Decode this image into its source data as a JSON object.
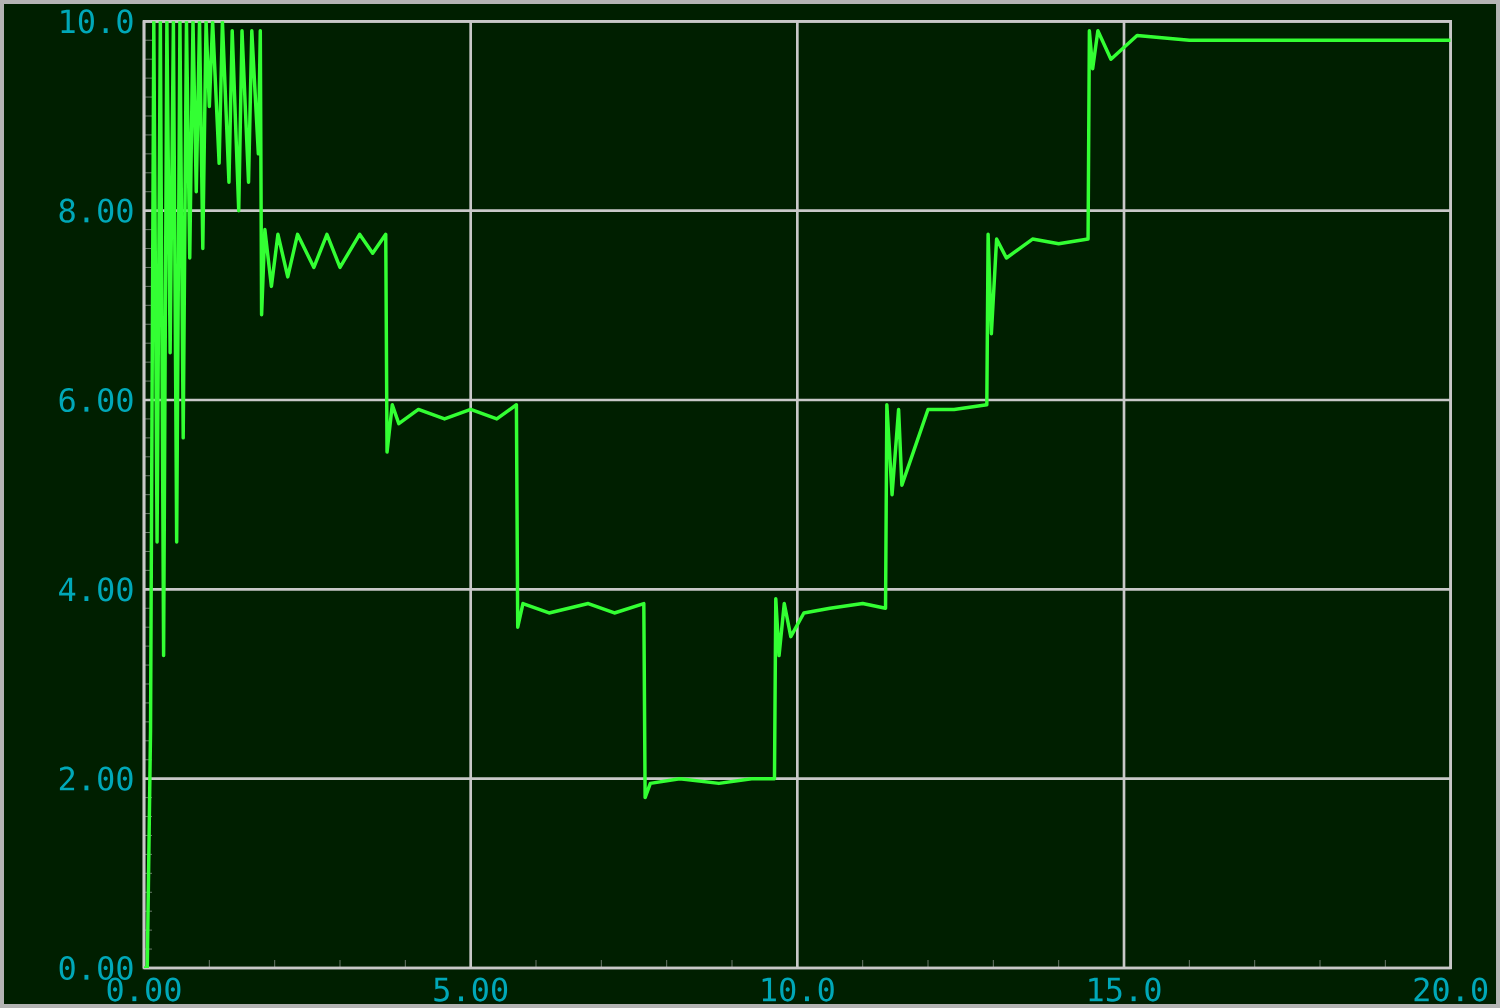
{
  "chart_data": {
    "type": "line",
    "xlim": [
      0,
      20
    ],
    "ylim": [
      0,
      10
    ],
    "xticks": [
      {
        "value": 0,
        "label": "0.00"
      },
      {
        "value": 5,
        "label": "5.00"
      },
      {
        "value": 10,
        "label": "10.0"
      },
      {
        "value": 15,
        "label": "15.0"
      },
      {
        "value": 20,
        "label": "20.0"
      }
    ],
    "yticks": [
      {
        "value": 0,
        "label": "0.00"
      },
      {
        "value": 2,
        "label": "2.00"
      },
      {
        "value": 4,
        "label": "4.00"
      },
      {
        "value": 6,
        "label": "6.00"
      },
      {
        "value": 8,
        "label": "8.00"
      },
      {
        "value": 10,
        "label": "10.0"
      }
    ],
    "grid": true,
    "marker": "none",
    "line_style": "solid",
    "series": [
      {
        "color": "#33ff33",
        "x": [
          0,
          0.05,
          0.1,
          0.15,
          0.2,
          0.25,
          0.3,
          0.35,
          0.4,
          0.45,
          0.5,
          0.55,
          0.6,
          0.65,
          0.7,
          0.75,
          0.8,
          0.85,
          0.9,
          0.95,
          1.0,
          1.05,
          1.15,
          1.2,
          1.3,
          1.35,
          1.45,
          1.5,
          1.6,
          1.65,
          1.75,
          1.78,
          1.8,
          1.85,
          1.95,
          2.05,
          2.2,
          2.35,
          2.6,
          2.8,
          3.0,
          3.3,
          3.5,
          3.7,
          3.72,
          3.8,
          3.9,
          4.2,
          4.6,
          5.0,
          5.4,
          5.7,
          5.72,
          5.8,
          6.2,
          6.8,
          7.2,
          7.65,
          7.67,
          7.75,
          8.2,
          8.8,
          9.3,
          9.65,
          9.67,
          9.72,
          9.8,
          9.9,
          10.1,
          10.5,
          11.0,
          11.35,
          11.37,
          11.45,
          11.55,
          11.6,
          11.8,
          12.0,
          12.4,
          12.9,
          12.92,
          12.97,
          13.05,
          13.2,
          13.6,
          14.0,
          14.45,
          14.47,
          14.52,
          14.6,
          14.8,
          15.2,
          16,
          17,
          18,
          19,
          20
        ],
        "values": [
          0,
          0,
          2.5,
          10,
          4.5,
          10,
          3.3,
          10,
          6.5,
          10,
          4.5,
          10,
          5.6,
          10,
          7.5,
          10,
          8.2,
          10,
          7.6,
          10,
          9.1,
          10,
          8.5,
          10,
          8.3,
          9.9,
          8.0,
          9.9,
          8.3,
          9.9,
          8.6,
          9.9,
          6.9,
          7.8,
          7.2,
          7.75,
          7.3,
          7.75,
          7.4,
          7.75,
          7.4,
          7.75,
          7.55,
          7.75,
          5.45,
          5.95,
          5.75,
          5.9,
          5.8,
          5.9,
          5.8,
          5.95,
          3.6,
          3.85,
          3.75,
          3.85,
          3.75,
          3.85,
          1.8,
          1.95,
          2.0,
          1.95,
          2.0,
          2.0,
          3.9,
          3.3,
          3.85,
          3.5,
          3.75,
          3.8,
          3.85,
          3.8,
          5.95,
          5.0,
          5.9,
          5.1,
          5.5,
          5.9,
          5.9,
          5.95,
          7.75,
          6.7,
          7.7,
          7.5,
          7.7,
          7.65,
          7.7,
          9.9,
          9.5,
          9.9,
          9.6,
          9.85,
          9.8,
          9.8,
          9.8,
          9.8,
          9.8
        ]
      }
    ]
  }
}
